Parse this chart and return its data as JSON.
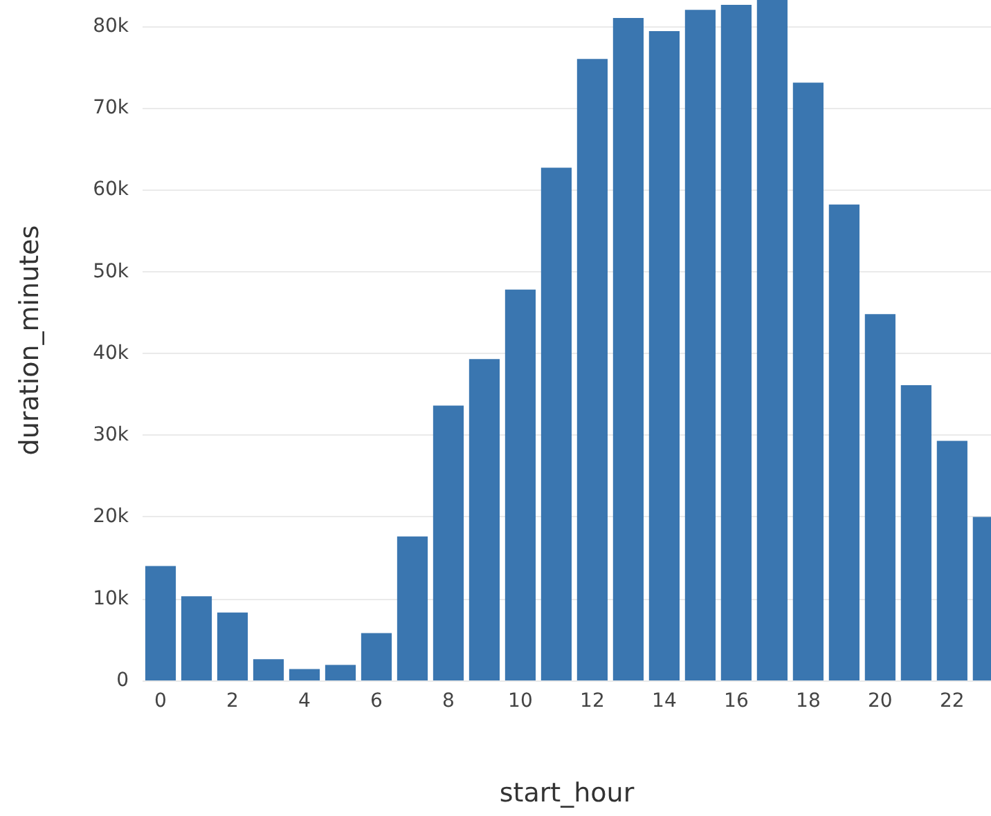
{
  "chart_data": {
    "type": "bar",
    "xlabel": "start_hour",
    "ylabel": "duration_minutes",
    "x": [
      0,
      1,
      2,
      3,
      4,
      5,
      6,
      7,
      8,
      9,
      10,
      11,
      12,
      13,
      14,
      15,
      16,
      17,
      18,
      19,
      20,
      21,
      22,
      23
    ],
    "values": [
      14000,
      10300,
      8300,
      2600,
      1400,
      1900,
      5800,
      17600,
      33600,
      39300,
      47800,
      62700,
      76000,
      81000,
      79400,
      82000,
      82600,
      83200,
      73100,
      58200,
      44800,
      36100,
      29300,
      20000
    ],
    "color": "#3a76b0",
    "xlim": [
      -0.5,
      23.08
    ],
    "xticks": [
      0,
      2,
      4,
      6,
      8,
      10,
      12,
      14,
      16,
      18,
      20,
      22
    ],
    "ylim": [
      0,
      83200
    ],
    "yticks": [
      0,
      {
        "value": 10000,
        "label": "10k"
      },
      {
        "value": 20000,
        "label": "20k"
      },
      {
        "value": 30000,
        "label": "30k"
      },
      {
        "value": 40000,
        "label": "40k"
      },
      {
        "value": 50000,
        "label": "50k"
      },
      {
        "value": 60000,
        "label": "60k"
      },
      {
        "value": 70000,
        "label": "70k"
      },
      {
        "value": 80000,
        "label": "80k"
      }
    ],
    "grid": "y"
  }
}
